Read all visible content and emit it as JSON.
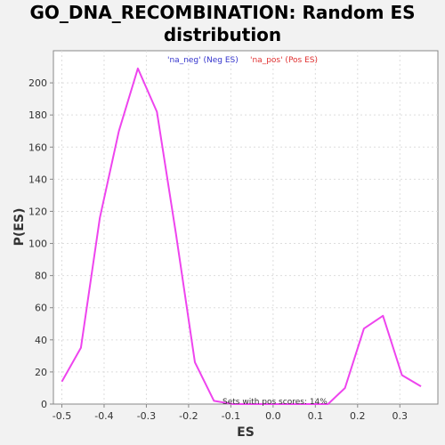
{
  "chart_data": {
    "type": "line",
    "title_line1": "GO_DNA_RECOMBINATION: Random ES",
    "title_line2": "distribution",
    "xlabel": "ES",
    "ylabel": "P(ES)",
    "xlim": [
      -0.52,
      0.39
    ],
    "ylim": [
      0,
      220
    ],
    "x_ticks": [
      -0.5,
      -0.4,
      -0.3,
      -0.2,
      -0.1,
      0.0,
      0.1,
      0.2,
      0.3
    ],
    "x_tick_labels": [
      "-0.5",
      "-0.4",
      "-0.3",
      "-0.2",
      "-0.1",
      "0.0",
      "0.1",
      "0.2",
      "0.3"
    ],
    "y_ticks": [
      0,
      20,
      40,
      60,
      80,
      100,
      120,
      140,
      160,
      180,
      200
    ],
    "y_tick_labels": [
      "0",
      "20",
      "40",
      "60",
      "80",
      "100",
      "120",
      "140",
      "160",
      "180",
      "200"
    ],
    "grid": true,
    "legend": [
      {
        "label": "'na_neg' (Neg ES)",
        "color": "#3333cc"
      },
      {
        "label": "'na_pos' (Pos ES)",
        "color": "#e03030"
      }
    ],
    "annotation": "Sets with pos scores: 14%",
    "series": [
      {
        "color": "#ee44ee",
        "x": [
          -0.5,
          -0.455,
          -0.41,
          -0.365,
          -0.32,
          -0.275,
          -0.23,
          -0.185,
          -0.14,
          -0.095,
          -0.05,
          -0.005,
          0.04,
          0.085,
          0.13,
          0.17,
          0.215,
          0.26,
          0.305,
          0.35
        ],
        "y": [
          14,
          35,
          116,
          170,
          209,
          182,
          106,
          26,
          2,
          0,
          0,
          0,
          0,
          0,
          0,
          10,
          47,
          55,
          18,
          11
        ]
      }
    ]
  }
}
